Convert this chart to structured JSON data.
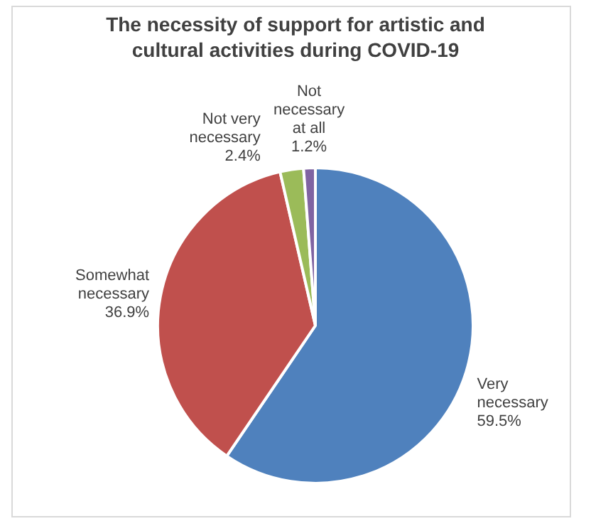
{
  "chart_data": {
    "type": "pie",
    "title": "The necessity of support for artistic and cultural activities during COVID-19",
    "categories": [
      "Very necessary",
      "Somewhat necessary",
      "Not very necessary",
      "Not necessary at all"
    ],
    "values": [
      59.5,
      36.9,
      2.4,
      1.2
    ],
    "colors": [
      "#4f81bd",
      "#c0504d",
      "#9bbb59",
      "#8064a2"
    ],
    "value_labels": [
      "59.5%",
      "36.9%",
      "2.4%",
      "1.2%"
    ]
  }
}
